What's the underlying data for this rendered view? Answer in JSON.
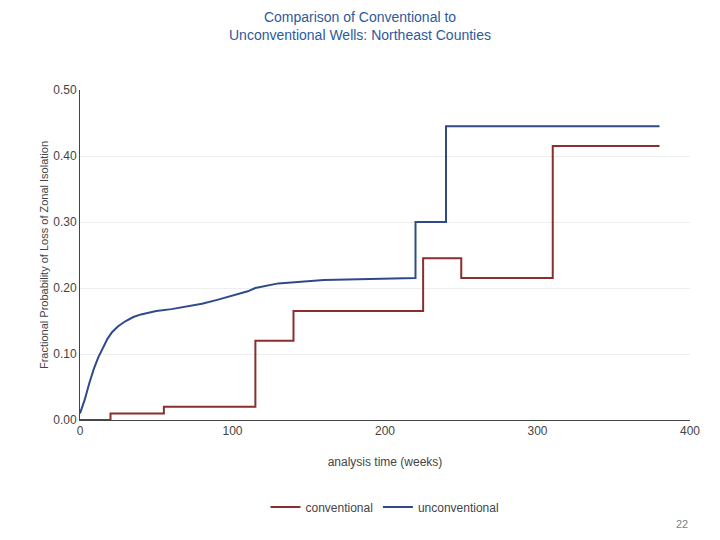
{
  "chart_data": {
    "type": "line",
    "title": "Comparison of Conventional to\nUnconventional Wells: Northeast Counties",
    "title_color": "#2E5A9C",
    "x_label": "analysis time (weeks)",
    "y_label": "Fractional Probability of Loss of Zonal Isolation",
    "series": [
      {
        "name": "conventional",
        "color": "#8B2E2E",
        "x": [
          0,
          20,
          20,
          55,
          55,
          115,
          115,
          140,
          140,
          225,
          225,
          250,
          250,
          310,
          310,
          380
        ],
        "values": [
          0.0,
          0.0,
          0.01,
          0.01,
          0.02,
          0.02,
          0.12,
          0.12,
          0.165,
          0.165,
          0.245,
          0.245,
          0.215,
          0.215,
          0.415,
          0.415
        ]
      },
      {
        "name": "unconventional",
        "color": "#2E4A8B",
        "x": [
          0,
          3,
          6,
          9,
          12,
          15,
          18,
          21,
          25,
          30,
          35,
          40,
          50,
          60,
          70,
          80,
          90,
          100,
          110,
          115,
          115,
          130,
          160,
          210,
          220,
          220,
          240,
          240,
          300,
          300,
          380
        ],
        "values": [
          0.01,
          0.03,
          0.055,
          0.077,
          0.095,
          0.11,
          0.123,
          0.133,
          0.142,
          0.15,
          0.156,
          0.16,
          0.165,
          0.168,
          0.172,
          0.176,
          0.182,
          0.188,
          0.195,
          0.2,
          0.2,
          0.207,
          0.212,
          0.215,
          0.215,
          0.3,
          0.3,
          0.445,
          0.445,
          0.445,
          0.445
        ]
      }
    ],
    "xlim": [
      0,
      400
    ],
    "xticks": [
      0,
      100,
      200,
      300,
      400
    ],
    "ylim": [
      0,
      0.5
    ],
    "yticks": [
      {
        "value": 0.0,
        "label": "0.00"
      },
      {
        "value": 0.1,
        "label": "0.10"
      },
      {
        "value": 0.2,
        "label": "0.20"
      },
      {
        "value": 0.3,
        "label": "0.30"
      },
      {
        "value": 0.4,
        "label": "0.40"
      },
      {
        "value": 0.5,
        "label": "0.50"
      }
    ],
    "grid": "y",
    "legend": "bottom",
    "annotations": [
      "22"
    ]
  }
}
